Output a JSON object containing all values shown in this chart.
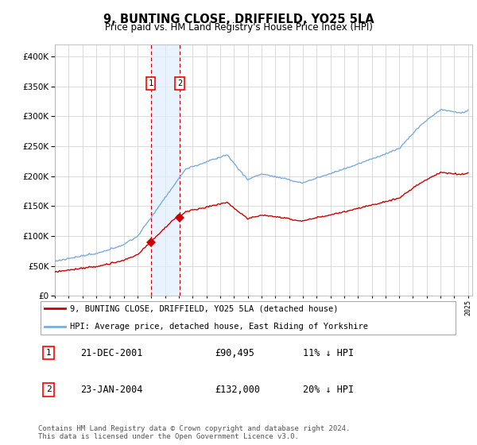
{
  "title": "9, BUNTING CLOSE, DRIFFIELD, YO25 5LA",
  "subtitle": "Price paid vs. HM Land Registry's House Price Index (HPI)",
  "ylim": [
    0,
    420000
  ],
  "yticks": [
    0,
    50000,
    100000,
    150000,
    200000,
    250000,
    300000,
    350000,
    400000
  ],
  "hpi_color": "#7aaddd",
  "price_color": "#cc0000",
  "marker_color": "#cc0000",
  "background_color": "#ffffff",
  "grid_color": "#cccccc",
  "transaction1_date": "21-DEC-2001",
  "transaction1_price": "£90,495",
  "transaction1_hpi": "11% ↓ HPI",
  "transaction1_year": 2001.97,
  "transaction1_value": 90495,
  "transaction2_date": "23-JAN-2004",
  "transaction2_price": "£132,000",
  "transaction2_hpi": "20% ↓ HPI",
  "transaction2_year": 2004.07,
  "transaction2_value": 132000,
  "legend_label1": "9, BUNTING CLOSE, DRIFFIELD, YO25 5LA (detached house)",
  "legend_label2": "HPI: Average price, detached house, East Riding of Yorkshire",
  "footnote": "Contains HM Land Registry data © Crown copyright and database right 2024.\nThis data is licensed under the Open Government Licence v3.0.",
  "shade_color": "#ddeeff"
}
